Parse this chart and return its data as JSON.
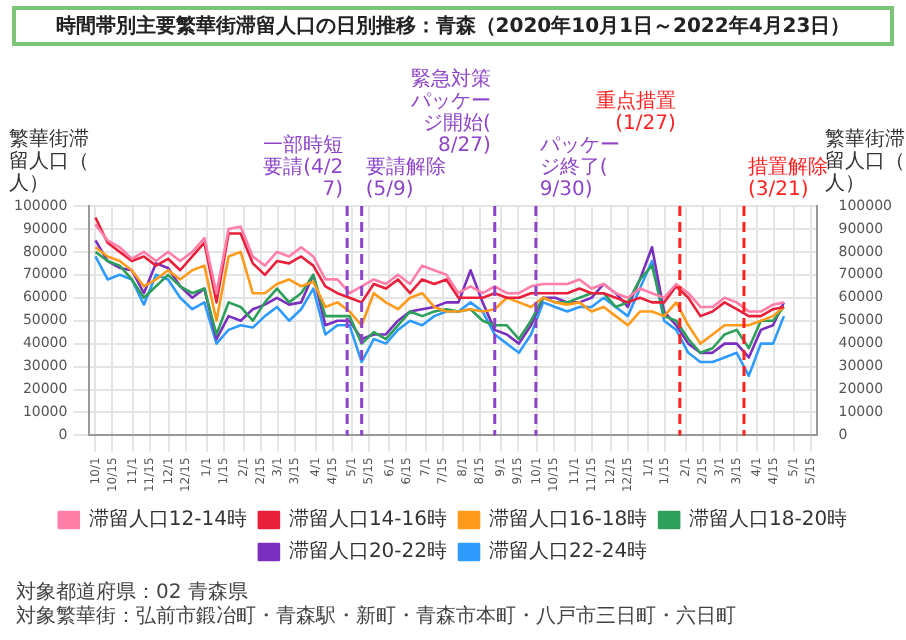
{
  "chart_data": {
    "type": "line",
    "title": "時間帯別主要繁華街滞留人口の日別推移：青森（2020年10月1日～2022年4月23日）",
    "ylabel": "繁華街滞留人口（人）",
    "y2label": "繁華街滞留人口（人）",
    "x": [
      "2020-10-01",
      "2020-10-11",
      "2020-10-21",
      "2020-10-31",
      "2020-11-10",
      "2020-11-20",
      "2020-11-30",
      "2020-12-10",
      "2020-12-20",
      "2020-12-30",
      "2021-01-09",
      "2021-01-19",
      "2021-01-29",
      "2021-02-08",
      "2021-02-18",
      "2021-02-28",
      "2021-03-10",
      "2021-03-20",
      "2021-03-30",
      "2021-04-09",
      "2021-04-19",
      "2021-04-29",
      "2021-05-09",
      "2021-05-19",
      "2021-05-29",
      "2021-06-08",
      "2021-06-18",
      "2021-06-28",
      "2021-07-08",
      "2021-07-18",
      "2021-07-28",
      "2021-08-07",
      "2021-08-17",
      "2021-08-27",
      "2021-09-06",
      "2021-09-16",
      "2021-09-26",
      "2021-10-06",
      "2021-10-16",
      "2021-10-26",
      "2021-11-05",
      "2021-11-15",
      "2021-11-25",
      "2021-12-05",
      "2021-12-15",
      "2021-12-25",
      "2022-01-04",
      "2022-01-14",
      "2022-01-24",
      "2022-02-03",
      "2022-02-13",
      "2022-02-23",
      "2022-03-05",
      "2022-03-15",
      "2022-03-25",
      "2022-04-04",
      "2022-04-14",
      "2022-04-23"
    ],
    "series": [
      {
        "name": "滞留人口12-14時",
        "color": "#ff7fa8",
        "values": [
          92000,
          85000,
          82000,
          77000,
          80000,
          76000,
          80000,
          76000,
          80000,
          86000,
          62000,
          90000,
          91000,
          78000,
          74000,
          80000,
          78000,
          82000,
          78000,
          68000,
          68000,
          62000,
          65000,
          68000,
          66000,
          70000,
          66000,
          74000,
          72000,
          70000,
          62000,
          65000,
          62000,
          65000,
          62000,
          62000,
          65000,
          66000,
          66000,
          66000,
          68000,
          64000,
          66000,
          62000,
          60000,
          64000,
          62000,
          60000,
          66000,
          62000,
          56000,
          56000,
          60000,
          58000,
          54000,
          54000,
          57000,
          58000
        ]
      },
      {
        "name": "滞留人口14-16時",
        "color": "#e8203a",
        "values": [
          95000,
          84000,
          80000,
          76000,
          78000,
          74000,
          77000,
          72000,
          78000,
          84000,
          58000,
          88000,
          88000,
          75000,
          70000,
          76000,
          75000,
          78000,
          74000,
          65000,
          62000,
          60000,
          58000,
          66000,
          64000,
          68000,
          62000,
          68000,
          66000,
          68000,
          60000,
          60000,
          60000,
          62000,
          60000,
          60000,
          62000,
          62000,
          62000,
          62000,
          64000,
          62000,
          62000,
          60000,
          58000,
          60000,
          58000,
          58000,
          65000,
          60000,
          52000,
          54000,
          58000,
          55000,
          52000,
          52000,
          55000,
          56000
        ]
      },
      {
        "name": "滞留人口16-18時",
        "color": "#ff9a1a",
        "values": [
          82000,
          78000,
          76000,
          72000,
          65000,
          68000,
          72000,
          68000,
          72000,
          74000,
          50000,
          78000,
          80000,
          62000,
          62000,
          66000,
          68000,
          65000,
          67000,
          56000,
          58000,
          54000,
          48000,
          62000,
          58000,
          55000,
          60000,
          62000,
          56000,
          54000,
          54000,
          55000,
          54000,
          55000,
          60000,
          58000,
          56000,
          60000,
          58000,
          57000,
          58000,
          54000,
          56000,
          52000,
          48000,
          54000,
          54000,
          52000,
          58000,
          48000,
          40000,
          44000,
          48000,
          48000,
          48000,
          50000,
          52000,
          56000
        ]
      },
      {
        "name": "滞留人口18-20時",
        "color": "#2ca05a",
        "values": [
          80000,
          76000,
          74000,
          68000,
          60000,
          65000,
          70000,
          65000,
          62000,
          64000,
          44000,
          58000,
          56000,
          50000,
          58000,
          64000,
          58000,
          62000,
          70000,
          52000,
          52000,
          52000,
          40000,
          45000,
          42000,
          48000,
          54000,
          52000,
          54000,
          55000,
          54000,
          55000,
          50000,
          48000,
          48000,
          42000,
          50000,
          60000,
          58000,
          58000,
          60000,
          62000,
          62000,
          56000,
          58000,
          68000,
          74000,
          52000,
          50000,
          42000,
          36000,
          38000,
          44000,
          46000,
          38000,
          50000,
          50000,
          56000
        ]
      },
      {
        "name": "滞留人口20-22時",
        "color": "#7b2fbf",
        "values": [
          85000,
          76000,
          73000,
          72000,
          62000,
          75000,
          73000,
          65000,
          60000,
          64000,
          42000,
          52000,
          50000,
          55000,
          57000,
          60000,
          57000,
          58000,
          70000,
          48000,
          50000,
          50000,
          42000,
          44000,
          44000,
          50000,
          54000,
          55000,
          56000,
          58000,
          58000,
          72000,
          58000,
          46000,
          44000,
          40000,
          48000,
          60000,
          60000,
          58000,
          58000,
          60000,
          66000,
          62000,
          56000,
          68000,
          82000,
          54000,
          48000,
          40000,
          36000,
          36000,
          40000,
          40000,
          34000,
          46000,
          48000,
          58000
        ]
      },
      {
        "name": "滞留人口22-24時",
        "color": "#2f9bff",
        "values": [
          78000,
          68000,
          70000,
          68000,
          57000,
          70000,
          68000,
          60000,
          55000,
          58000,
          40000,
          46000,
          48000,
          47000,
          52000,
          56000,
          50000,
          55000,
          64000,
          44000,
          48000,
          48000,
          32000,
          42000,
          40000,
          46000,
          50000,
          48000,
          52000,
          54000,
          54000,
          58000,
          54000,
          44000,
          40000,
          36000,
          44000,
          58000,
          56000,
          54000,
          56000,
          56000,
          60000,
          56000,
          52000,
          64000,
          76000,
          50000,
          46000,
          36000,
          32000,
          32000,
          34000,
          36000,
          26000,
          40000,
          40000,
          52000
        ]
      }
    ],
    "xlim": [
      "2020-09-26",
      "2022-05-20"
    ],
    "xticks": [
      {
        "value": "2020-10-01",
        "label": "10/1"
      },
      {
        "value": "2020-10-15",
        "label": "10/15"
      },
      {
        "value": "2020-11-01",
        "label": "11/1"
      },
      {
        "value": "2020-11-15",
        "label": "11/15"
      },
      {
        "value": "2020-12-01",
        "label": "12/1"
      },
      {
        "value": "2020-12-15",
        "label": "12/15"
      },
      {
        "value": "2021-01-01",
        "label": "1/1"
      },
      {
        "value": "2021-01-15",
        "label": "1/15"
      },
      {
        "value": "2021-02-01",
        "label": "2/1"
      },
      {
        "value": "2021-02-15",
        "label": "2/15"
      },
      {
        "value": "2021-03-01",
        "label": "3/1"
      },
      {
        "value": "2021-03-15",
        "label": "3/15"
      },
      {
        "value": "2021-04-01",
        "label": "4/1"
      },
      {
        "value": "2021-04-15",
        "label": "4/15"
      },
      {
        "value": "2021-05-01",
        "label": "5/1"
      },
      {
        "value": "2021-05-15",
        "label": "5/15"
      },
      {
        "value": "2021-06-01",
        "label": "6/1"
      },
      {
        "value": "2021-06-15",
        "label": "6/15"
      },
      {
        "value": "2021-07-01",
        "label": "7/1"
      },
      {
        "value": "2021-07-15",
        "label": "7/15"
      },
      {
        "value": "2021-08-01",
        "label": "8/1"
      },
      {
        "value": "2021-08-15",
        "label": "8/15"
      },
      {
        "value": "2021-09-01",
        "label": "9/1"
      },
      {
        "value": "2021-09-15",
        "label": "9/15"
      },
      {
        "value": "2021-10-01",
        "label": "10/1"
      },
      {
        "value": "2021-10-15",
        "label": "10/15"
      },
      {
        "value": "2021-11-01",
        "label": "11/1"
      },
      {
        "value": "2021-11-15",
        "label": "11/15"
      },
      {
        "value": "2021-12-01",
        "label": "12/1"
      },
      {
        "value": "2021-12-15",
        "label": "12/15"
      },
      {
        "value": "2022-01-01",
        "label": "1/1"
      },
      {
        "value": "2022-01-15",
        "label": "1/15"
      },
      {
        "value": "2022-02-01",
        "label": "2/1"
      },
      {
        "value": "2022-02-15",
        "label": "2/15"
      },
      {
        "value": "2022-03-01",
        "label": "3/1"
      },
      {
        "value": "2022-03-15",
        "label": "3/15"
      },
      {
        "value": "2022-04-01",
        "label": "4/1"
      },
      {
        "value": "2022-04-15",
        "label": "4/15"
      },
      {
        "value": "2022-05-01",
        "label": "5/1"
      },
      {
        "value": "2022-05-15",
        "label": "5/15"
      }
    ],
    "ylim": [
      0,
      100000
    ],
    "yticks": [
      0,
      10000,
      20000,
      30000,
      40000,
      50000,
      60000,
      70000,
      80000,
      90000,
      100000
    ],
    "y2lim": [
      0,
      100000
    ],
    "y2ticks": [
      0,
      10000,
      20000,
      30000,
      40000,
      50000,
      60000,
      70000,
      80000,
      90000,
      100000
    ],
    "ref_lines": [
      {
        "axis": "x",
        "value": "2021-04-27",
        "label": "一部時短要請(4/27)",
        "color": "#8e44c8",
        "line_style": "dashed"
      },
      {
        "axis": "x",
        "value": "2021-05-09",
        "label": "要請解除(5/9)",
        "color": "#8e44c8",
        "line_style": "dashed"
      },
      {
        "axis": "x",
        "value": "2021-08-27",
        "label": "緊急対策パッケージ開始(8/27)",
        "color": "#8e44c8",
        "line_style": "dashed"
      },
      {
        "axis": "x",
        "value": "2021-09-30",
        "label": "パッケージ終了(9/30)",
        "color": "#8e44c8",
        "line_style": "dashed"
      },
      {
        "axis": "x",
        "value": "2022-01-27",
        "label": "重点措置(1/27)",
        "color": "#ff2020",
        "line_style": "dashed"
      },
      {
        "axis": "x",
        "value": "2022-03-21",
        "label": "措置解除(3/21)",
        "color": "#ff2020",
        "line_style": "dashed"
      }
    ],
    "annotations": [
      "対象都道府県：02 青森県",
      "対象繁華街：弘前市鍛冶町・青森駅・新町・青森市本町・八戸市三日町・六日町"
    ],
    "grid": true,
    "legend": "bottom",
    "marker": "none"
  }
}
